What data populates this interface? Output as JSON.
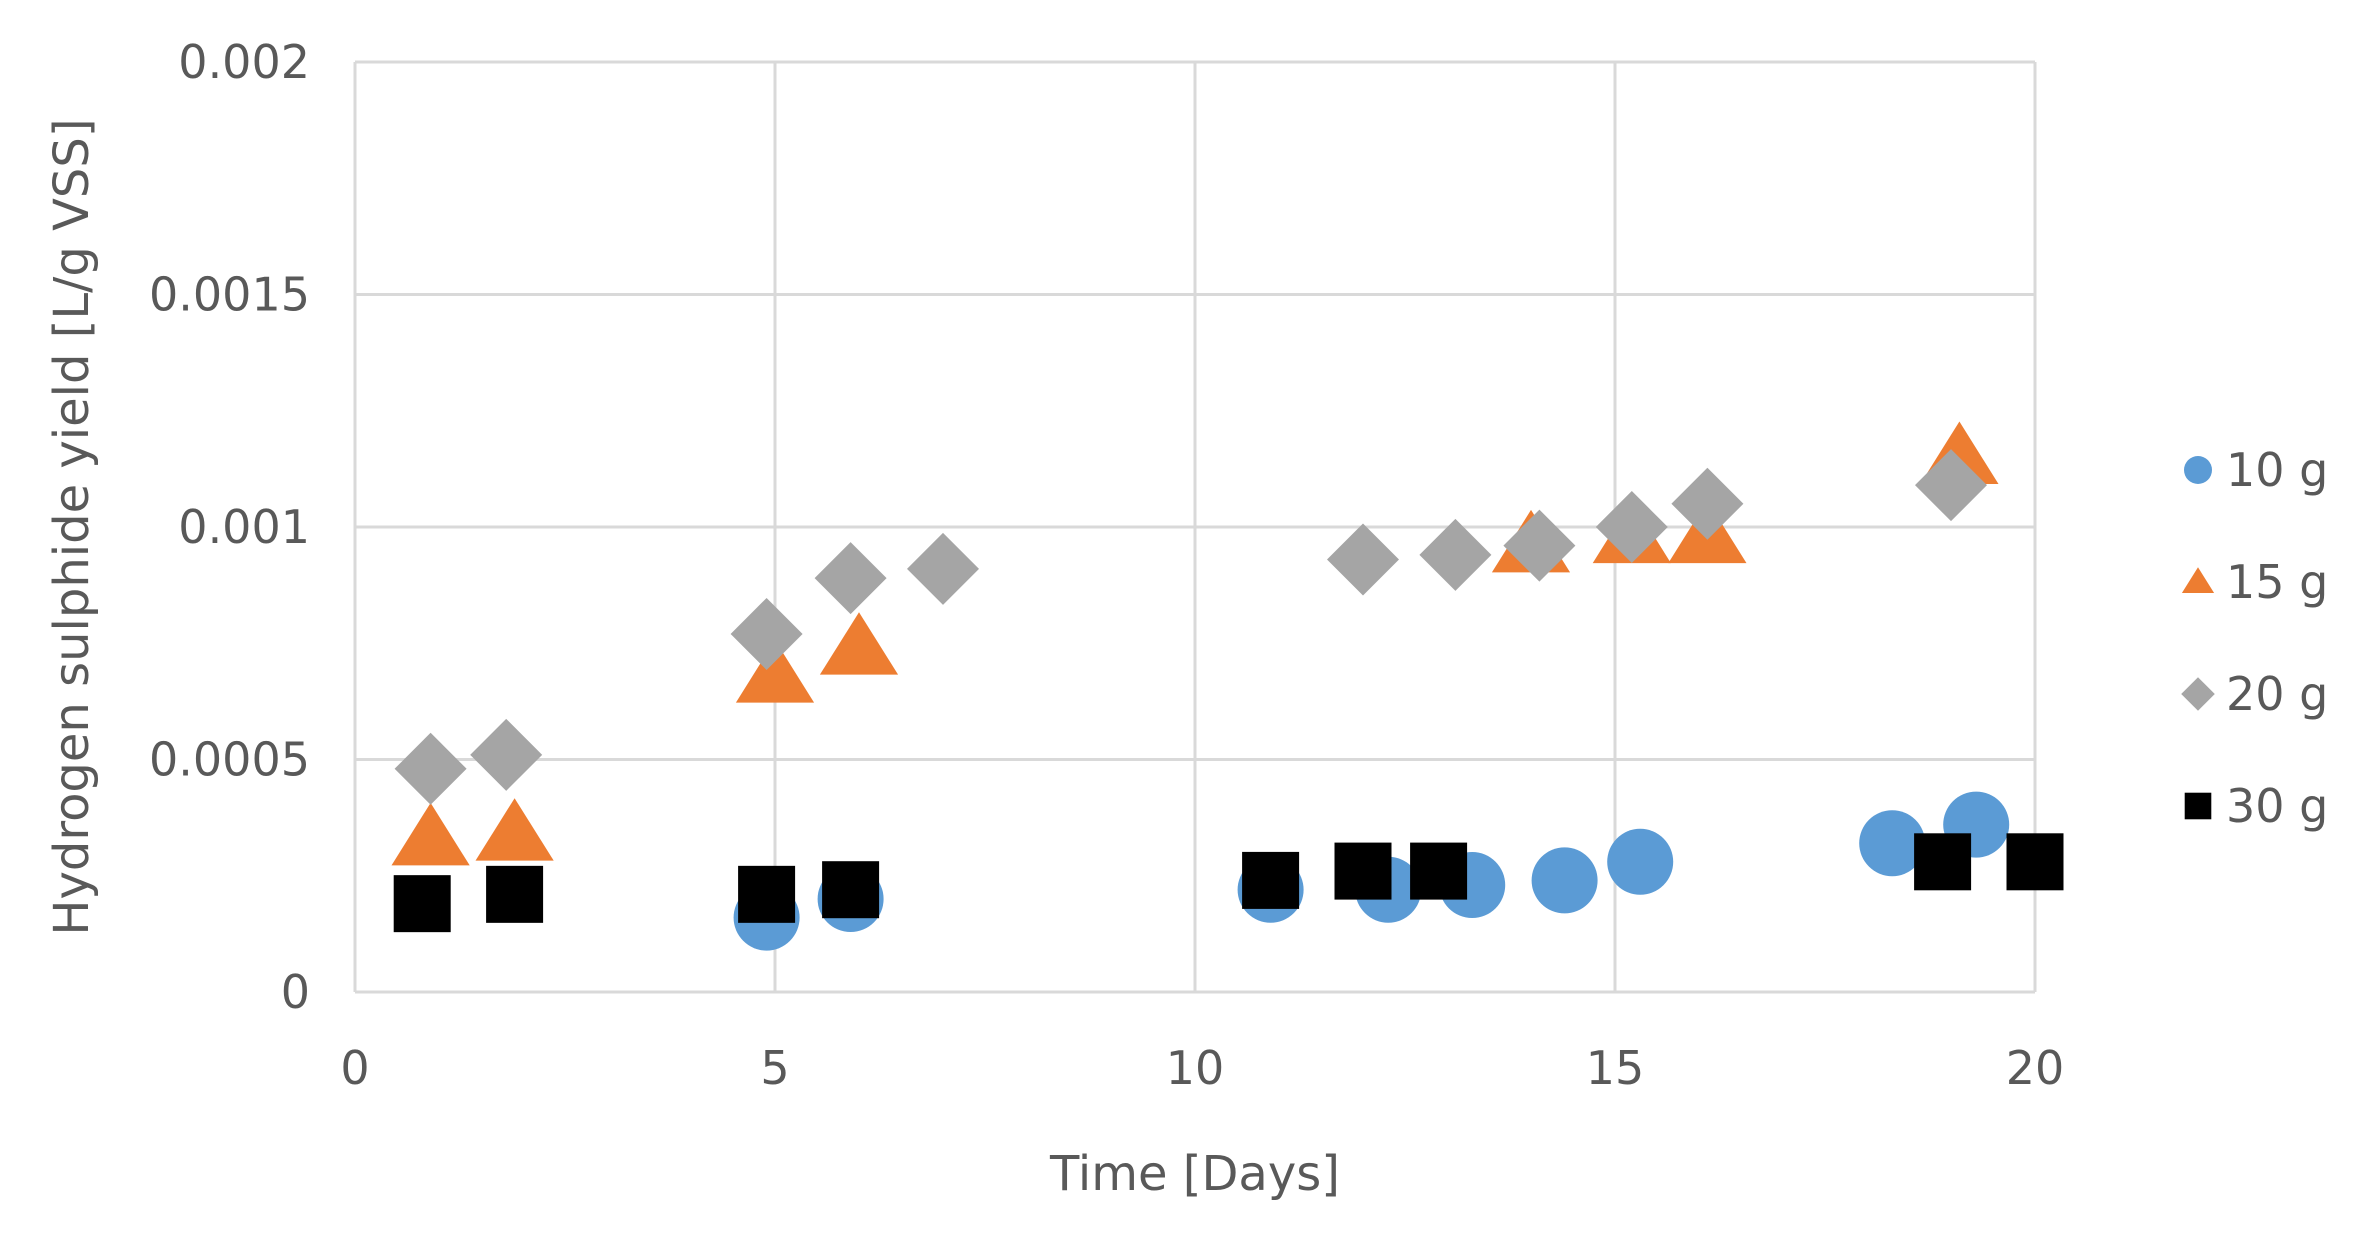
{
  "chart_data": {
    "type": "scatter",
    "title": "",
    "xlabel": "Time [Days]",
    "ylabel": "Hydrogen sulphide yield  [L/g VSS]",
    "xlim": [
      0,
      20
    ],
    "ylim": [
      0,
      0.002
    ],
    "x_ticks": [
      0,
      5,
      10,
      15,
      20
    ],
    "y_ticks": [
      0,
      0.0005,
      0.001,
      0.0015,
      0.002
    ],
    "x_tick_labels": [
      "0",
      "5",
      "10",
      "15",
      "20"
    ],
    "y_tick_labels": [
      "0",
      "0.0005",
      "0.001",
      "0.0015",
      "0.002"
    ],
    "grid": true,
    "legend_position": "right",
    "series": [
      {
        "name": "10 g",
        "marker": "circle",
        "color": "#5B9BD5",
        "points": [
          [
            4.9,
            0.00016
          ],
          [
            5.9,
            0.0002
          ],
          [
            10.9,
            0.00022
          ],
          [
            12.3,
            0.00022
          ],
          [
            13.3,
            0.00023
          ],
          [
            14.4,
            0.00024
          ],
          [
            15.3,
            0.00028
          ],
          [
            18.3,
            0.00032
          ],
          [
            19.3,
            0.00036
          ]
        ]
      },
      {
        "name": "15 g",
        "marker": "triangle",
        "color": "#ED7D31",
        "points": [
          [
            0.9,
            0.00033
          ],
          [
            1.9,
            0.00034
          ],
          [
            5.0,
            0.00068
          ],
          [
            6.0,
            0.00074
          ],
          [
            14.0,
            0.00096
          ],
          [
            15.2,
            0.00098
          ],
          [
            16.1,
            0.00098
          ],
          [
            19.1,
            0.00115
          ]
        ]
      },
      {
        "name": "20 g",
        "marker": "diamond",
        "color": "#A5A5A5",
        "points": [
          [
            0.9,
            0.00048
          ],
          [
            1.8,
            0.00051
          ],
          [
            4.9,
            0.00077
          ],
          [
            5.9,
            0.00089
          ],
          [
            7.0,
            0.00091
          ],
          [
            12.0,
            0.00093
          ],
          [
            13.1,
            0.00094
          ],
          [
            14.1,
            0.00096
          ],
          [
            15.2,
            0.001
          ],
          [
            16.1,
            0.00105
          ],
          [
            19.0,
            0.00109
          ]
        ]
      },
      {
        "name": "30 g",
        "marker": "square",
        "color": "#000000",
        "points": [
          [
            0.8,
            0.00019
          ],
          [
            1.9,
            0.00021
          ],
          [
            4.9,
            0.00021
          ],
          [
            5.9,
            0.00022
          ],
          [
            10.9,
            0.00024
          ],
          [
            12.0,
            0.00026
          ],
          [
            12.9,
            0.00026
          ],
          [
            18.9,
            0.00028
          ],
          [
            20.0,
            0.00028
          ]
        ]
      }
    ]
  }
}
